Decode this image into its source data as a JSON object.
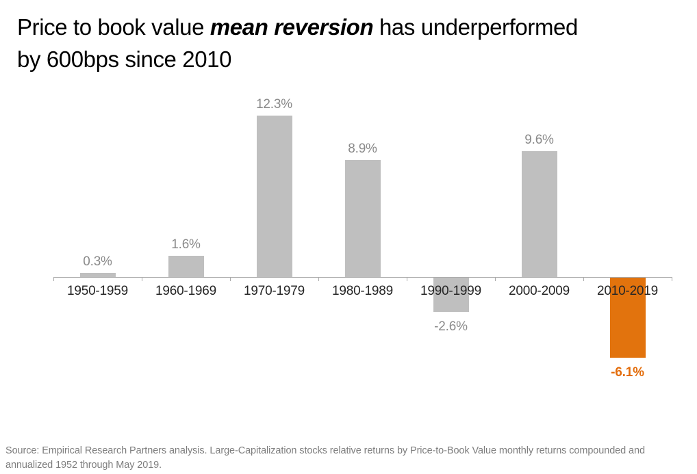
{
  "title": {
    "line1_prefix": "Price to book value ",
    "line1_emphasis": "mean reversion",
    "line1_suffix": " has underperformed",
    "line2": "by 600bps since 2010"
  },
  "source": {
    "line1": "Source: Empirical Research Partners analysis. Large-Capitalization stocks relative returns by Price-to-Book Value monthly returns compounded and",
    "line2": "annualized 1952 through May 2019."
  },
  "chart_data": {
    "type": "bar",
    "title": "Price to book value mean reversion has underperformed by 600bps since 2010",
    "categories": [
      "1950-1959",
      "1960-1969",
      "1970-1979",
      "1980-1989",
      "1990-1999",
      "2000-2009",
      "2010-2019"
    ],
    "values": [
      0.3,
      1.6,
      12.3,
      8.9,
      -2.6,
      9.6,
      -6.1
    ],
    "value_labels": [
      "0.3%",
      "1.6%",
      "12.3%",
      "8.9%",
      "-2.6%",
      "9.6%",
      "-6.1%"
    ],
    "highlight_index": 6,
    "xlabel": "",
    "ylabel": "",
    "ylim": [
      -8,
      14
    ],
    "grid": false,
    "legend": false,
    "colors": {
      "bar_default": "#BFBFBF",
      "bar_highlight": "#E2730D",
      "value_label_default": "#8A8A8A",
      "value_label_highlight": "#E36C0A",
      "category_label": "#262626",
      "axis": "#ABABAB",
      "title_text": "#000000",
      "source_text": "#7D7D7D"
    }
  }
}
